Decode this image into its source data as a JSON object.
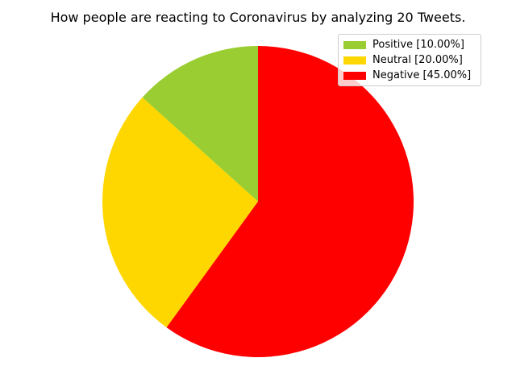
{
  "chart_data": {
    "type": "pie",
    "title": "How people are reacting to Coronavirus by analyzing 20 Tweets.",
    "slices": [
      {
        "label": "Positive [10.00%]",
        "value": 10.0,
        "color": "#9acd32"
      },
      {
        "label": "Neutral [20.00%]",
        "value": 20.0,
        "color": "#ffd700"
      },
      {
        "label": "Negative [45.00%]",
        "value": 45.0,
        "color": "#ff0000"
      }
    ],
    "start_angle_deg": 90,
    "direction": "counterclockwise",
    "legend_placement": "top-right"
  }
}
